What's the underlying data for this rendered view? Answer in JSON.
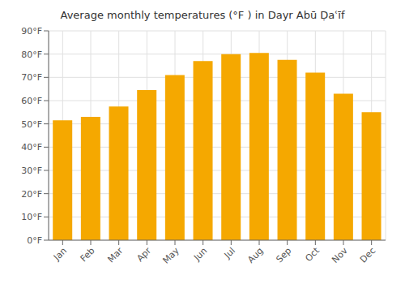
{
  "chart_data": {
    "type": "bar",
    "title": "Average monthly temperatures (°F ) in Dayr Abū Ḍaʿīf",
    "categories": [
      "Jan",
      "Feb",
      "Mar",
      "Apr",
      "May",
      "Jun",
      "Jul",
      "Aug",
      "Sep",
      "Oct",
      "Nov",
      "Dec"
    ],
    "values": [
      51.5,
      53,
      57.5,
      64.5,
      71,
      77,
      80,
      80.5,
      77.5,
      72,
      63,
      55
    ],
    "color": "#F5A800",
    "ylim": [
      0,
      90
    ],
    "yticks": [
      {
        "value": 0,
        "label": "0°F"
      },
      {
        "value": 10,
        "label": "10°F"
      },
      {
        "value": 20,
        "label": "20°F"
      },
      {
        "value": 30,
        "label": "30°F"
      },
      {
        "value": 40,
        "label": "40°F"
      },
      {
        "value": 50,
        "label": "50°F"
      },
      {
        "value": 60,
        "label": "60°F"
      },
      {
        "value": 70,
        "label": "70°F"
      },
      {
        "value": 80,
        "label": "80°F"
      },
      {
        "value": 90,
        "label": "90°F"
      }
    ],
    "grid": true
  }
}
